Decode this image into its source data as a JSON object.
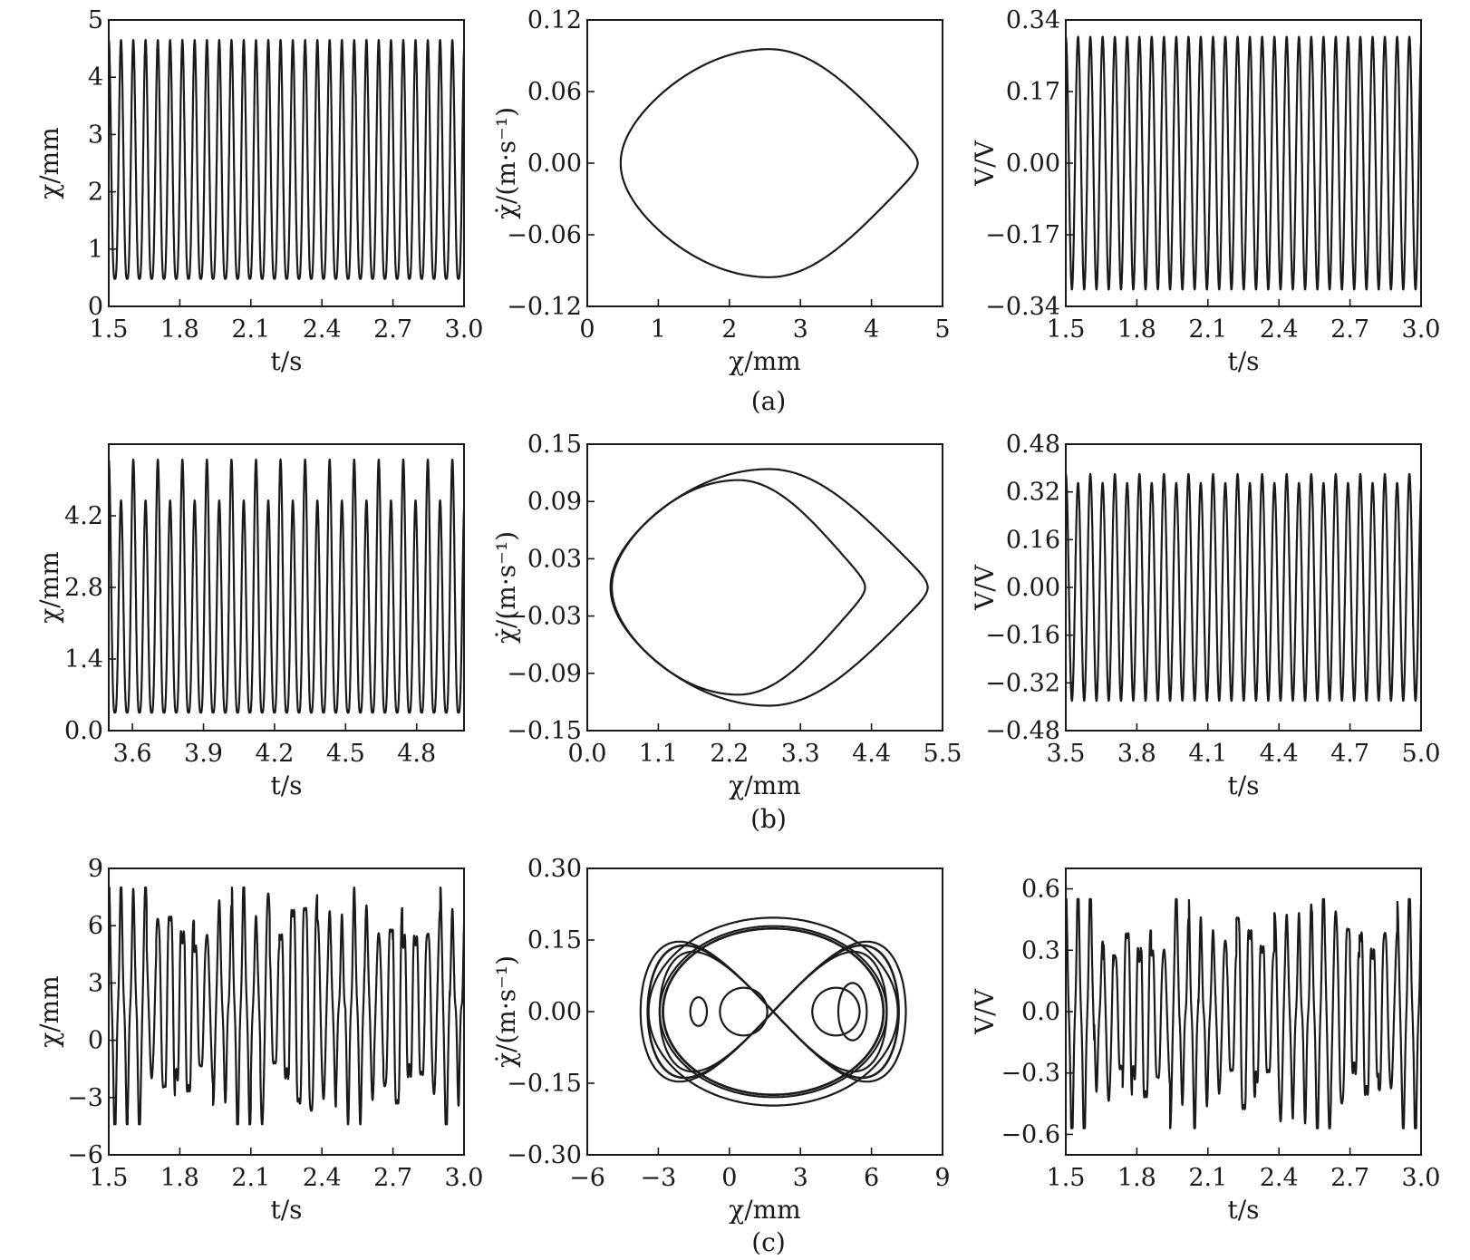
{
  "figure_labels": [
    "(a)",
    "(b)",
    "(c)"
  ],
  "chart_data": [
    {
      "id": "a1",
      "row": 0,
      "col": 0,
      "type": "line",
      "kind": "wave",
      "xlabel": "t/s",
      "ylabel": "χ/mm",
      "xlim": [
        1.5,
        3.0
      ],
      "ylim": [
        0,
        5
      ],
      "xticks": [
        1.5,
        1.8,
        2.1,
        2.4,
        2.7,
        3.0
      ],
      "xtick_labels": [
        "1.5",
        "1.8",
        "2.1",
        "2.4",
        "2.7",
        "3.0"
      ],
      "yticks": [
        0,
        1,
        2,
        3,
        4,
        5
      ],
      "ytick_labels": [
        "0",
        "1",
        "2",
        "3",
        "4",
        "5"
      ],
      "series": [
        {
          "frequency_hz": 19.3,
          "max": 4.65,
          "min": 0.48,
          "shape": "peaked",
          "periodicity": 1
        }
      ]
    },
    {
      "id": "a2",
      "row": 0,
      "col": 1,
      "type": "line",
      "kind": "orbit",
      "xlabel": "χ/mm",
      "ylabel": "χ̇/(m·s⁻¹)",
      "xlim": [
        0,
        5
      ],
      "ylim": [
        -0.12,
        0.12
      ],
      "xticks": [
        0,
        1,
        2,
        3,
        4,
        5
      ],
      "xtick_labels": [
        "0",
        "1",
        "2",
        "3",
        "4",
        "5"
      ],
      "yticks": [
        -0.12,
        -0.06,
        0,
        0.06,
        0.12
      ],
      "ytick_labels": [
        "−0.12",
        "−0.06",
        "0.00",
        "0.06",
        "0.12"
      ],
      "series": [
        {
          "x_min": 0.47,
          "x_max": 4.65,
          "x_at_vmax": 2.1,
          "v_max": 0.091
        }
      ]
    },
    {
      "id": "a3",
      "row": 0,
      "col": 2,
      "type": "line",
      "kind": "wave",
      "xlabel": "t/s",
      "ylabel": "V/V",
      "xlim": [
        1.5,
        3.0
      ],
      "ylim": [
        -0.34,
        0.34
      ],
      "xticks": [
        1.5,
        1.8,
        2.1,
        2.4,
        2.7,
        3.0
      ],
      "xtick_labels": [
        "1.5",
        "1.8",
        "2.1",
        "2.4",
        "2.7",
        "3.0"
      ],
      "yticks": [
        -0.34,
        -0.17,
        0,
        0.17,
        0.34
      ],
      "ytick_labels": [
        "−0.34",
        "−0.17",
        "0.00",
        "0.17",
        "0.34"
      ],
      "series": [
        {
          "frequency_hz": 19.3,
          "max": 0.3,
          "min": -0.3,
          "shape": "sine",
          "periodicity": 1
        }
      ]
    },
    {
      "id": "b1",
      "row": 1,
      "col": 0,
      "type": "line",
      "kind": "wave",
      "xlabel": "t/s",
      "ylabel": "χ/mm",
      "xlim": [
        3.5,
        5.0
      ],
      "ylim": [
        0,
        5.6
      ],
      "xticks": [
        3.6,
        3.9,
        4.2,
        4.5,
        4.8
      ],
      "xtick_labels": [
        "3.6",
        "3.9",
        "4.2",
        "4.5",
        "4.8"
      ],
      "yticks": [
        0,
        1.4,
        2.8,
        4.2
      ],
      "ytick_labels": [
        "0.0",
        "1.4",
        "2.8",
        "4.2"
      ],
      "series": [
        {
          "frequency_hz": 19.3,
          "max": 5.3,
          "max_alt": 4.5,
          "min": 0.35,
          "shape": "peaked",
          "periodicity": 2
        }
      ]
    },
    {
      "id": "b2",
      "row": 1,
      "col": 1,
      "type": "line",
      "kind": "orbit",
      "xlabel": "χ/mm",
      "ylabel": "χ̇/(m·s⁻¹)",
      "xlim": [
        0,
        5.5
      ],
      "ylim": [
        -0.15,
        0.15
      ],
      "xticks": [
        0,
        1.1,
        2.2,
        3.3,
        4.4,
        5.5
      ],
      "xtick_labels": [
        "0.0",
        "1.1",
        "2.2",
        "3.3",
        "4.4",
        "5.5"
      ],
      "yticks": [
        -0.15,
        -0.09,
        -0.03,
        0.03,
        0.09,
        0.15
      ],
      "ytick_labels": [
        "−0.15",
        "−0.09",
        "−0.03",
        "0.03",
        "0.09",
        "0.15"
      ],
      "series": [
        {
          "x_min": 0.38,
          "x_max": 4.3,
          "x_at_vmax": 2.0,
          "v_max": 0.107
        },
        {
          "x_min": 0.36,
          "x_max": 5.27,
          "x_at_vmax": 2.3,
          "v_max": 0.118
        }
      ]
    },
    {
      "id": "b3",
      "row": 1,
      "col": 2,
      "type": "line",
      "kind": "wave",
      "xlabel": "t/s",
      "ylabel": "V/V",
      "xlim": [
        3.5,
        5.0
      ],
      "ylim": [
        -0.48,
        0.48
      ],
      "xticks": [
        3.5,
        3.8,
        4.1,
        4.4,
        4.7,
        5.0
      ],
      "xtick_labels": [
        "3.5",
        "3.8",
        "4.1",
        "4.4",
        "4.7",
        "5.0"
      ],
      "yticks": [
        -0.48,
        -0.32,
        -0.16,
        0,
        0.16,
        0.32,
        0.48
      ],
      "ytick_labels": [
        "−0.48",
        "−0.32",
        "−0.16",
        "0.00",
        "0.16",
        "0.32",
        "0.48"
      ],
      "series": [
        {
          "frequency_hz": 19.3,
          "max": 0.38,
          "max_alt": 0.35,
          "min": -0.38,
          "shape": "sine",
          "periodicity": 2
        }
      ]
    },
    {
      "id": "c1",
      "row": 2,
      "col": 0,
      "type": "line",
      "kind": "chaos",
      "xlabel": "t/s",
      "ylabel": "χ/mm",
      "xlim": [
        1.5,
        3.0
      ],
      "ylim": [
        -6,
        9
      ],
      "xticks": [
        1.5,
        1.8,
        2.1,
        2.4,
        2.7,
        3.0
      ],
      "xtick_labels": [
        "1.5",
        "1.8",
        "2.1",
        "2.4",
        "2.7",
        "3.0"
      ],
      "yticks": [
        -6,
        -3,
        0,
        3,
        6,
        9
      ],
      "ytick_labels": [
        "−6",
        "−3",
        "0",
        "3",
        "6",
        "9"
      ],
      "series": [
        {
          "max": 8.0,
          "min": -4.4
        }
      ]
    },
    {
      "id": "c2",
      "row": 2,
      "col": 1,
      "type": "line",
      "kind": "attractor",
      "xlabel": "χ/mm",
      "ylabel": "χ̇/(m·s⁻¹)",
      "xlim": [
        -6,
        9
      ],
      "ylim": [
        -0.3,
        0.3
      ],
      "xticks": [
        -6,
        -3,
        0,
        3,
        6,
        9
      ],
      "xtick_labels": [
        "−6",
        "−3",
        "0",
        "3",
        "6",
        "9"
      ],
      "yticks": [
        -0.3,
        -0.15,
        0,
        0.15,
        0.3
      ],
      "ytick_labels": [
        "−0.30",
        "−0.15",
        "0.00",
        "0.15",
        "0.30"
      ],
      "series": [
        {
          "x_min": -4.3,
          "x_max": 8.0,
          "v_max": 0.23,
          "v_min": -0.245
        }
      ]
    },
    {
      "id": "c3",
      "row": 2,
      "col": 2,
      "type": "line",
      "kind": "chaos",
      "xlabel": "t/s",
      "ylabel": "V/V",
      "xlim": [
        1.5,
        3.0
      ],
      "ylim": [
        -0.7,
        0.7
      ],
      "xticks": [
        1.5,
        1.8,
        2.1,
        2.4,
        2.7,
        3.0
      ],
      "xtick_labels": [
        "1.5",
        "1.8",
        "2.1",
        "2.4",
        "2.7",
        "3.0"
      ],
      "yticks": [
        -0.6,
        -0.3,
        0,
        0.3,
        0.6
      ],
      "ytick_labels": [
        "−0.6",
        "−0.3",
        "0.0",
        "0.3",
        "0.6"
      ],
      "series": [
        {
          "max": 0.55,
          "min": -0.57
        }
      ]
    }
  ]
}
